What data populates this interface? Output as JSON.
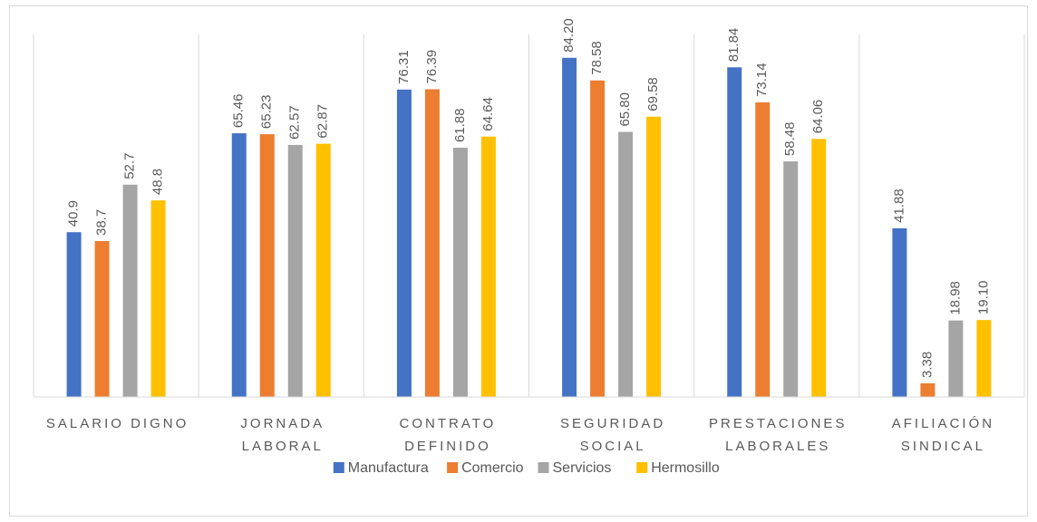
{
  "chart_data": {
    "type": "bar",
    "categories": [
      [
        "SALARIO DIGNO"
      ],
      [
        "JORNADA",
        "LABORAL"
      ],
      [
        "CONTRATO",
        "DEFINIDO"
      ],
      [
        "SEGURIDAD",
        "SOCIAL"
      ],
      [
        "PRESTACIONES",
        "LABORALES"
      ],
      [
        "AFILIACIÓN",
        "SINDICAL"
      ]
    ],
    "series": [
      {
        "name": "Manufactura",
        "color": "#4472c4",
        "values": [
          40.9,
          65.46,
          76.31,
          84.2,
          81.84,
          41.88
        ],
        "value_labels": [
          "40.9",
          "65.46",
          "76.31",
          "84.20",
          "81.84",
          "41.88"
        ]
      },
      {
        "name": "Comercio",
        "color": "#ed7d31",
        "values": [
          38.7,
          65.23,
          76.39,
          78.58,
          73.14,
          3.38
        ],
        "value_labels": [
          "38.7",
          "65.23",
          "76.39",
          "78.58",
          "73.14",
          "3.38"
        ]
      },
      {
        "name": "Servicios",
        "color": "#a5a5a5",
        "values": [
          52.7,
          62.57,
          61.88,
          65.8,
          58.48,
          18.98
        ],
        "value_labels": [
          "52.7",
          "62.57",
          "61.88",
          "65.80",
          "58.48",
          "18.98"
        ]
      },
      {
        "name": "Hermosillo",
        "color": "#ffc000",
        "values": [
          48.8,
          62.87,
          64.64,
          69.58,
          64.06,
          19.1
        ],
        "value_labels": [
          "48.8",
          "62.87",
          "64.64",
          "69.58",
          "64.06",
          "19.10"
        ]
      }
    ],
    "ylim": [
      0,
      90
    ],
    "legend": "bottom"
  }
}
